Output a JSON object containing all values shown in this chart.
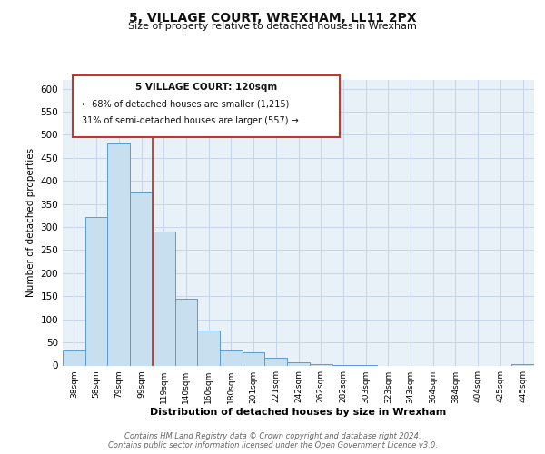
{
  "title": "5, VILLAGE COURT, WREXHAM, LL11 2PX",
  "subtitle": "Size of property relative to detached houses in Wrexham",
  "xlabel": "Distribution of detached houses by size in Wrexham",
  "ylabel": "Number of detached properties",
  "bar_labels": [
    "38sqm",
    "58sqm",
    "79sqm",
    "99sqm",
    "119sqm",
    "140sqm",
    "160sqm",
    "180sqm",
    "201sqm",
    "221sqm",
    "242sqm",
    "262sqm",
    "282sqm",
    "303sqm",
    "323sqm",
    "343sqm",
    "364sqm",
    "384sqm",
    "404sqm",
    "425sqm",
    "445sqm"
  ],
  "bar_values": [
    32,
    322,
    482,
    375,
    290,
    145,
    75,
    32,
    29,
    17,
    7,
    2,
    1,
    1,
    0,
    0,
    0,
    0,
    0,
    0,
    2
  ],
  "bar_color": "#c8dff0",
  "bar_edge_color": "#5b9bd5",
  "ylim": [
    0,
    620
  ],
  "yticks": [
    0,
    50,
    100,
    150,
    200,
    250,
    300,
    350,
    400,
    450,
    500,
    550,
    600
  ],
  "property_line_x": 4,
  "property_line_color": "#c0392b",
  "annotation_title": "5 VILLAGE COURT: 120sqm",
  "annotation_line1": "← 68% of detached houses are smaller (1,215)",
  "annotation_line2": "31% of semi-detached houses are larger (557) →",
  "annotation_box_color": "#ffffff",
  "annotation_box_edge": "#c0392b",
  "footer_line1": "Contains HM Land Registry data © Crown copyright and database right 2024.",
  "footer_line2": "Contains public sector information licensed under the Open Government Licence v3.0.",
  "background_color": "#ffffff",
  "plot_bg_color": "#e8f0f8",
  "grid_color": "#c8d4e8"
}
